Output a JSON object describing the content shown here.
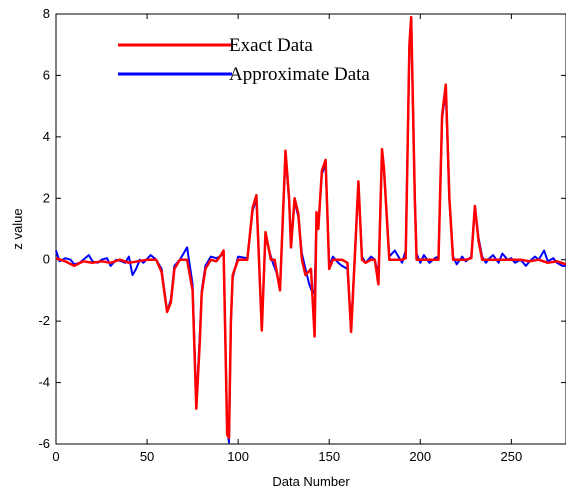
{
  "chart_data": {
    "type": "line",
    "xlabel": "Data Number",
    "ylabel": "z value",
    "xlim": [
      0,
      280
    ],
    "ylim": [
      -6,
      8
    ],
    "xticks": [
      0,
      50,
      100,
      150,
      200,
      250
    ],
    "yticks": [
      -6,
      -4,
      -2,
      0,
      2,
      4,
      6,
      8
    ],
    "grid": false,
    "legend_position": "top-left",
    "series": [
      {
        "name": "Exact Data",
        "color": "#ff0000",
        "points": [
          [
            0,
            0.05
          ],
          [
            5,
            -0.05
          ],
          [
            10,
            -0.2
          ],
          [
            15,
            -0.05
          ],
          [
            20,
            -0.1
          ],
          [
            25,
            -0.05
          ],
          [
            30,
            -0.1
          ],
          [
            35,
            0
          ],
          [
            40,
            -0.1
          ],
          [
            45,
            -0.05
          ],
          [
            50,
            0
          ],
          [
            55,
            0
          ],
          [
            58,
            -0.4
          ],
          [
            61,
            -1.7
          ],
          [
            63,
            -1.4
          ],
          [
            65,
            -0.3
          ],
          [
            68,
            0
          ],
          [
            72,
            0
          ],
          [
            75,
            -1
          ],
          [
            77,
            -4.85
          ],
          [
            79,
            -2.6
          ],
          [
            80,
            -1.1
          ],
          [
            82,
            -0.3
          ],
          [
            85,
            0
          ],
          [
            88,
            -0.05
          ],
          [
            90,
            0.1
          ],
          [
            92,
            0.3
          ],
          [
            94,
            -5.7
          ],
          [
            95,
            -5.8
          ],
          [
            96,
            -2
          ],
          [
            97,
            -0.5
          ],
          [
            100,
            0
          ],
          [
            105,
            0
          ],
          [
            108,
            1.7
          ],
          [
            110,
            2.1
          ],
          [
            113,
            -2.3
          ],
          [
            115,
            0.9
          ],
          [
            118,
            0
          ],
          [
            120,
            0
          ],
          [
            123,
            -1
          ],
          [
            126,
            3.55
          ],
          [
            128,
            2
          ],
          [
            129,
            0.4
          ],
          [
            131,
            2
          ],
          [
            133,
            1.5
          ],
          [
            135,
            0
          ],
          [
            137,
            -0.5
          ],
          [
            140,
            -0.3
          ],
          [
            142,
            -2.5
          ],
          [
            143,
            1.55
          ],
          [
            144,
            1
          ],
          [
            146,
            2.9
          ],
          [
            148,
            3.25
          ],
          [
            150,
            -0.3
          ],
          [
            152,
            0
          ],
          [
            155,
            0
          ],
          [
            157,
            0
          ],
          [
            160,
            -0.1
          ],
          [
            162,
            -2.35
          ],
          [
            164,
            0
          ],
          [
            166,
            2.55
          ],
          [
            168,
            0
          ],
          [
            170,
            -0.1
          ],
          [
            173,
            0
          ],
          [
            175,
            0
          ],
          [
            177,
            -0.8
          ],
          [
            179,
            3.6
          ],
          [
            180,
            3
          ],
          [
            183,
            0
          ],
          [
            186,
            0
          ],
          [
            190,
            0
          ],
          [
            192,
            0.05
          ],
          [
            194,
            7
          ],
          [
            195,
            7.9
          ],
          [
            197,
            2
          ],
          [
            198,
            0
          ],
          [
            200,
            0
          ],
          [
            202,
            0
          ],
          [
            205,
            0
          ],
          [
            208,
            0
          ],
          [
            210,
            0
          ],
          [
            212,
            4.7
          ],
          [
            214,
            5.7
          ],
          [
            216,
            2
          ],
          [
            218,
            0
          ],
          [
            220,
            0
          ],
          [
            225,
            0
          ],
          [
            228,
            0.05
          ],
          [
            230,
            1.75
          ],
          [
            232,
            0.6
          ],
          [
            234,
            0
          ],
          [
            238,
            0
          ],
          [
            240,
            0
          ],
          [
            245,
            0
          ],
          [
            250,
            0
          ],
          [
            255,
            0
          ],
          [
            260,
            -0.05
          ],
          [
            265,
            0
          ],
          [
            270,
            -0.1
          ],
          [
            275,
            -0.05
          ],
          [
            280,
            -0.15
          ]
        ]
      },
      {
        "name": "Approximate Data",
        "color": "#0000ff",
        "points": [
          [
            0,
            0.3
          ],
          [
            2,
            -0.05
          ],
          [
            5,
            0.05
          ],
          [
            8,
            0
          ],
          [
            10,
            -0.15
          ],
          [
            13,
            -0.1
          ],
          [
            15,
            0
          ],
          [
            18,
            0.15
          ],
          [
            20,
            -0.05
          ],
          [
            23,
            -0.1
          ],
          [
            25,
            0
          ],
          [
            28,
            0.05
          ],
          [
            30,
            -0.2
          ],
          [
            33,
            0
          ],
          [
            36,
            -0.05
          ],
          [
            38,
            -0.1
          ],
          [
            40,
            0.1
          ],
          [
            42,
            -0.5
          ],
          [
            44,
            -0.3
          ],
          [
            46,
            0
          ],
          [
            48,
            -0.1
          ],
          [
            52,
            0.15
          ],
          [
            55,
            0
          ],
          [
            58,
            -0.3
          ],
          [
            61,
            -1.7
          ],
          [
            63,
            -1.3
          ],
          [
            65,
            -0.2
          ],
          [
            68,
            0
          ],
          [
            72,
            0.4
          ],
          [
            75,
            -0.8
          ],
          [
            77,
            -4.7
          ],
          [
            79,
            -2.4
          ],
          [
            80,
            -1
          ],
          [
            82,
            -0.2
          ],
          [
            85,
            0.1
          ],
          [
            88,
            0.05
          ],
          [
            90,
            0.1
          ],
          [
            92,
            0.2
          ],
          [
            94,
            -5.5
          ],
          [
            95,
            -5.95
          ],
          [
            96,
            -2.1
          ],
          [
            97,
            -0.6
          ],
          [
            100,
            0.1
          ],
          [
            105,
            0.05
          ],
          [
            108,
            1.6
          ],
          [
            110,
            2
          ],
          [
            113,
            -2.2
          ],
          [
            115,
            0.8
          ],
          [
            117,
            0.3
          ],
          [
            119,
            -0.1
          ],
          [
            121,
            -0.4
          ],
          [
            123,
            -0.9
          ],
          [
            126,
            3.4
          ],
          [
            128,
            1.9
          ],
          [
            129,
            0.5
          ],
          [
            131,
            1.9
          ],
          [
            133,
            1.4
          ],
          [
            135,
            0.2
          ],
          [
            137,
            -0.3
          ],
          [
            139,
            -0.8
          ],
          [
            141,
            -1.1
          ],
          [
            142,
            -1
          ],
          [
            143,
            1.4
          ],
          [
            144,
            1.1
          ],
          [
            146,
            2.8
          ],
          [
            148,
            3.1
          ],
          [
            150,
            -0.2
          ],
          [
            152,
            0.1
          ],
          [
            155,
            -0.1
          ],
          [
            157,
            -0.2
          ],
          [
            160,
            -0.3
          ],
          [
            162,
            -2.2
          ],
          [
            164,
            0.1
          ],
          [
            166,
            2.5
          ],
          [
            168,
            0.1
          ],
          [
            170,
            -0.1
          ],
          [
            173,
            0.1
          ],
          [
            175,
            0
          ],
          [
            177,
            -0.5
          ],
          [
            179,
            3.4
          ],
          [
            180,
            2.9
          ],
          [
            183,
            0.1
          ],
          [
            186,
            0.3
          ],
          [
            190,
            -0.1
          ],
          [
            192,
            0.3
          ],
          [
            194,
            6.9
          ],
          [
            195,
            7.7
          ],
          [
            197,
            2.1
          ],
          [
            198,
            0.2
          ],
          [
            200,
            -0.1
          ],
          [
            202,
            0.15
          ],
          [
            205,
            -0.1
          ],
          [
            208,
            0.05
          ],
          [
            210,
            0.1
          ],
          [
            212,
            4.6
          ],
          [
            214,
            5.5
          ],
          [
            216,
            1.9
          ],
          [
            218,
            0.1
          ],
          [
            220,
            -0.15
          ],
          [
            223,
            0.1
          ],
          [
            225,
            -0.05
          ],
          [
            228,
            0.1
          ],
          [
            230,
            1.7
          ],
          [
            232,
            0.7
          ],
          [
            234,
            0.1
          ],
          [
            236,
            -0.1
          ],
          [
            238,
            0.05
          ],
          [
            240,
            0.15
          ],
          [
            243,
            -0.1
          ],
          [
            245,
            0.2
          ],
          [
            248,
            0
          ],
          [
            250,
            0.05
          ],
          [
            252,
            -0.1
          ],
          [
            255,
            0
          ],
          [
            258,
            -0.2
          ],
          [
            260,
            -0.05
          ],
          [
            263,
            0.1
          ],
          [
            265,
            0
          ],
          [
            268,
            0.3
          ],
          [
            270,
            -0.05
          ],
          [
            273,
            0.05
          ],
          [
            275,
            -0.1
          ],
          [
            278,
            -0.2
          ],
          [
            280,
            -0.2
          ]
        ]
      }
    ]
  }
}
